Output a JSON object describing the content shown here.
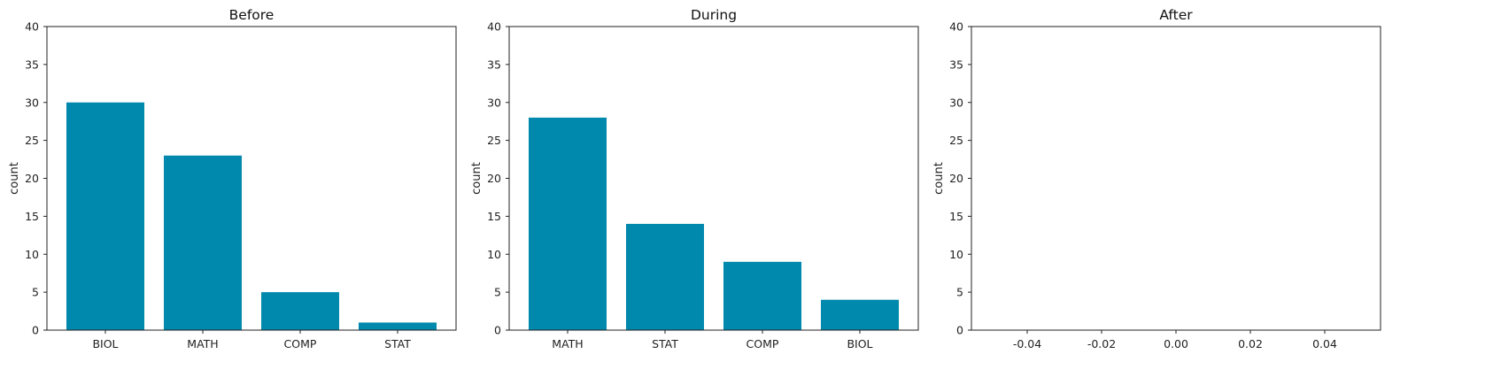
{
  "chart_data": [
    {
      "type": "bar",
      "title": "Before",
      "xlabel": "",
      "ylabel": "count",
      "categories": [
        "BIOL",
        "MATH",
        "COMP",
        "STAT"
      ],
      "values": [
        30,
        23,
        5,
        1
      ],
      "ylim": [
        0,
        40
      ],
      "yticks": [
        0,
        5,
        10,
        15,
        20,
        25,
        30,
        35,
        40
      ],
      "grid": false,
      "bar_color": "#0088ad"
    },
    {
      "type": "bar",
      "title": "During",
      "xlabel": "",
      "ylabel": "count",
      "categories": [
        "MATH",
        "STAT",
        "COMP",
        "BIOL"
      ],
      "values": [
        28,
        14,
        9,
        4
      ],
      "ylim": [
        0,
        40
      ],
      "yticks": [
        0,
        5,
        10,
        15,
        20,
        25,
        30,
        35,
        40
      ],
      "grid": false,
      "bar_color": "#0088ad"
    },
    {
      "type": "bar",
      "title": "After",
      "xlabel": "",
      "ylabel": "count",
      "categories": [],
      "values": [],
      "ylim": [
        0,
        40
      ],
      "yticks": [
        0,
        5,
        10,
        15,
        20,
        25,
        30,
        35,
        40
      ],
      "xlim": [
        -0.055,
        0.055
      ],
      "xticks": [
        "-0.04",
        "-0.02",
        "0.00",
        "0.02",
        "0.04"
      ],
      "xtick_values": [
        -0.04,
        -0.02,
        0.0,
        0.02,
        0.04
      ],
      "grid": false,
      "bar_color": "#0088ad"
    }
  ]
}
